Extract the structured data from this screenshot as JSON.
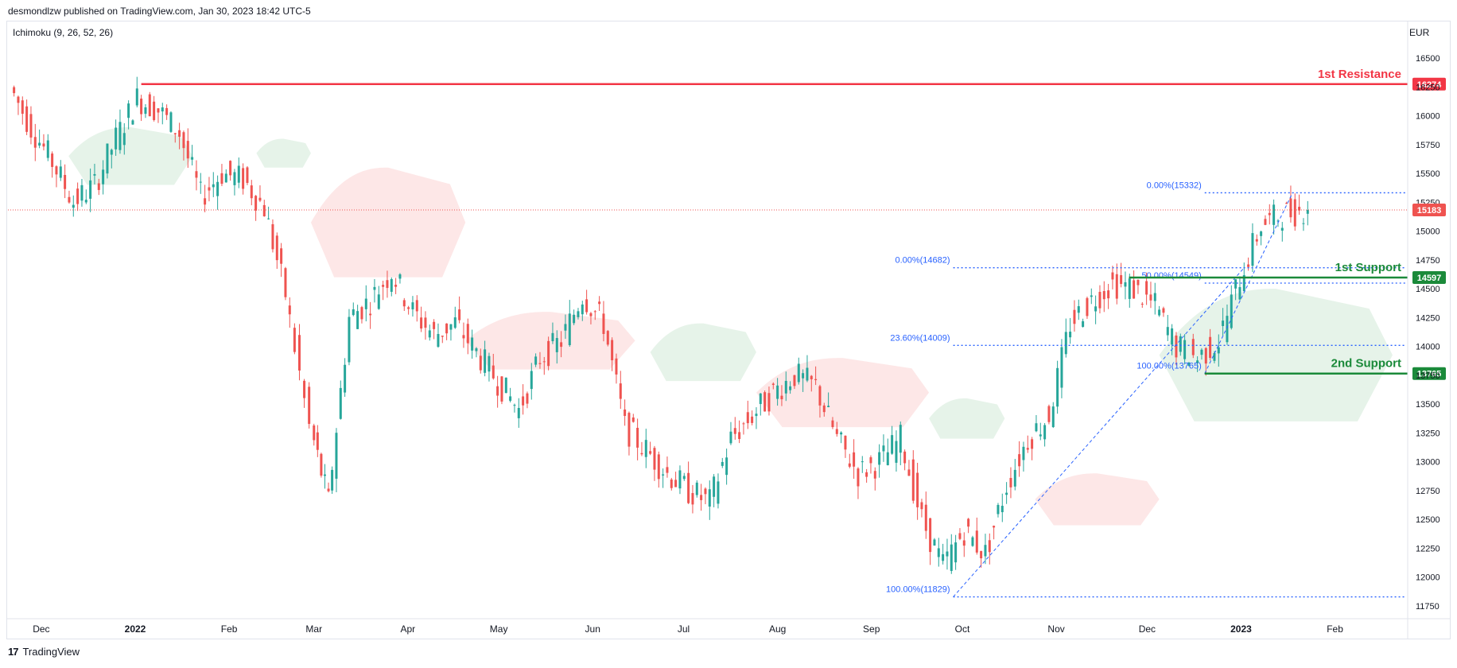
{
  "header": {
    "published": "desmondlzw published on TradingView.com, Jan 30, 2023 18:42 UTC-5"
  },
  "indicator": {
    "label": "Ichimoku (9, 26, 52, 26)"
  },
  "currency": "EUR",
  "footer": {
    "brand": "TradingView",
    "logo": "17"
  },
  "colors": {
    "up": "#26a69a",
    "down": "#ef5350",
    "resistance": "#f23645",
    "support": "#1b8a3a",
    "fib": "#2962ff",
    "cloud_up": "#e6f3e9",
    "cloud_down": "#fde7e7"
  },
  "chart_data": {
    "type": "candlestick",
    "title": "",
    "y_axis": {
      "ticks": [
        11750,
        12000,
        12250,
        12500,
        12750,
        13000,
        13250,
        13500,
        13750,
        14000,
        14250,
        14500,
        14750,
        15000,
        15250,
        15500,
        15750,
        16000,
        16250,
        16500
      ],
      "range": [
        11650,
        16700
      ]
    },
    "x_axis": {
      "ticks": [
        "Dec",
        "2022",
        "Feb",
        "Mar",
        "Apr",
        "May",
        "Jun",
        "Jul",
        "Aug",
        "Sep",
        "Oct",
        "Nov",
        "Dec",
        "2023",
        "Feb"
      ],
      "bold": [
        "2022",
        "2023"
      ]
    },
    "price_close_series": [
      [
        "2021-11-22",
        16250
      ],
      [
        "2021-11-29",
        15900
      ],
      [
        "2021-12-06",
        15600
      ],
      [
        "2021-12-13",
        15250
      ],
      [
        "2021-12-20",
        15400
      ],
      [
        "2021-12-27",
        15800
      ],
      [
        "2022-01-03",
        16150
      ],
      [
        "2022-01-10",
        16050
      ],
      [
        "2022-01-17",
        15850
      ],
      [
        "2022-01-24",
        15300
      ],
      [
        "2022-01-31",
        15500
      ],
      [
        "2022-02-07",
        15450
      ],
      [
        "2022-02-14",
        15200
      ],
      [
        "2022-02-21",
        14450
      ],
      [
        "2022-03-01",
        13300
      ],
      [
        "2022-03-07",
        12650
      ],
      [
        "2022-03-14",
        14250
      ],
      [
        "2022-03-21",
        14400
      ],
      [
        "2022-03-28",
        14650
      ],
      [
        "2022-04-04",
        14300
      ],
      [
        "2022-04-11",
        14100
      ],
      [
        "2022-04-18",
        14200
      ],
      [
        "2022-04-25",
        13950
      ],
      [
        "2022-05-02",
        13700
      ],
      [
        "2022-05-09",
        13450
      ],
      [
        "2022-05-16",
        13900
      ],
      [
        "2022-05-23",
        14050
      ],
      [
        "2022-05-30",
        14450
      ],
      [
        "2022-06-06",
        14200
      ],
      [
        "2022-06-13",
        13300
      ],
      [
        "2022-06-20",
        13100
      ],
      [
        "2022-06-27",
        12900
      ],
      [
        "2022-07-04",
        12750
      ],
      [
        "2022-07-11",
        12650
      ],
      [
        "2022-07-18",
        13200
      ],
      [
        "2022-07-25",
        13400
      ],
      [
        "2022-08-01",
        13600
      ],
      [
        "2022-08-08",
        13750
      ],
      [
        "2022-08-15",
        13650
      ],
      [
        "2022-08-22",
        13200
      ],
      [
        "2022-08-29",
        12900
      ],
      [
        "2022-09-05",
        13000
      ],
      [
        "2022-09-12",
        13200
      ],
      [
        "2022-09-19",
        12500
      ],
      [
        "2022-09-26",
        12100
      ],
      [
        "2022-10-03",
        12400
      ],
      [
        "2022-10-10",
        12200
      ],
      [
        "2022-10-17",
        12800
      ],
      [
        "2022-10-24",
        13200
      ],
      [
        "2022-10-31",
        13400
      ],
      [
        "2022-11-07",
        14200
      ],
      [
        "2022-11-14",
        14400
      ],
      [
        "2022-11-21",
        14550
      ],
      [
        "2022-11-28",
        14500
      ],
      [
        "2022-12-05",
        14350
      ],
      [
        "2022-12-12",
        14000
      ],
      [
        "2022-12-19",
        13900
      ],
      [
        "2022-12-26",
        14050
      ],
      [
        "2023-01-02",
        14600
      ],
      [
        "2023-01-09",
        15050
      ],
      [
        "2023-01-16",
        15150
      ],
      [
        "2023-01-23",
        15183
      ]
    ],
    "levels": [
      {
        "name": "1st Resistance",
        "value": 16274,
        "color": "#f23645"
      },
      {
        "name": "1st Support",
        "value": 14597,
        "color": "#1b8a3a"
      },
      {
        "name": "2nd Support",
        "value": 13765,
        "color": "#1b8a3a"
      }
    ],
    "current_price": 15183,
    "fib_big": {
      "level_0": "0.00%(14682)",
      "level_236": "23.60%(14009)",
      "level_100": "100.00%(11829)",
      "low": 11829,
      "high": 14682,
      "mid": 14009
    },
    "fib_small": {
      "level_0": "0.00%(15332)",
      "level_50": "50.00%(14549)",
      "level_100": "100.00%(13765)",
      "low": 13765,
      "high": 15332,
      "mid": 14549
    },
    "cloud_segments": [
      {
        "start": "2021-12-10",
        "end": "2022-01-20",
        "top": 15900,
        "bottom": 15400,
        "color": "up"
      },
      {
        "start": "2022-02-10",
        "end": "2022-02-28",
        "top": 15800,
        "bottom": 15550,
        "color": "up"
      },
      {
        "start": "2022-02-28",
        "end": "2022-04-20",
        "top": 15550,
        "bottom": 14600,
        "color": "down"
      },
      {
        "start": "2022-04-20",
        "end": "2022-06-15",
        "top": 14300,
        "bottom": 13800,
        "color": "down"
      },
      {
        "start": "2022-06-20",
        "end": "2022-07-25",
        "top": 14200,
        "bottom": 13700,
        "color": "up"
      },
      {
        "start": "2022-07-25",
        "end": "2022-09-20",
        "top": 13900,
        "bottom": 13300,
        "color": "down"
      },
      {
        "start": "2022-09-20",
        "end": "2022-10-15",
        "top": 13550,
        "bottom": 13200,
        "color": "up"
      },
      {
        "start": "2022-10-25",
        "end": "2022-12-05",
        "top": 12900,
        "bottom": 12450,
        "color": "down"
      },
      {
        "start": "2022-12-05",
        "end": "2023-02-20",
        "top": 14500,
        "bottom": 13350,
        "color": "up"
      }
    ]
  }
}
